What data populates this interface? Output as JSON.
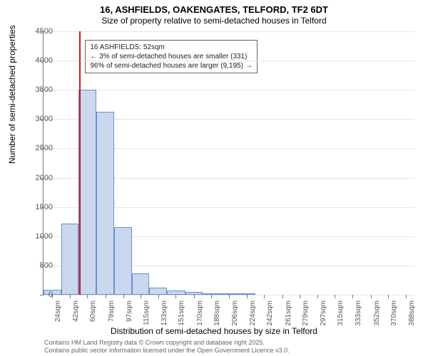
{
  "title": "16, ASHFIELDS, OAKENGATES, TELFORD, TF2 6DT",
  "subtitle": "Size of property relative to semi-detached houses in Telford",
  "ylabel": "Number of semi-detached properties",
  "xlabel": "Distribution of semi-detached houses by size in Telford",
  "attribution_line1": "Contains HM Land Registry data © Crown copyright and database right 2025.",
  "attribution_line2": "Contains public sector information licensed under the Open Government Licence v3.0.",
  "chart": {
    "type": "histogram",
    "ylim": [
      0,
      4500
    ],
    "yticks": [
      0,
      500,
      1000,
      1500,
      2000,
      2500,
      3000,
      3500,
      4000,
      4500
    ],
    "xlim": [
      15,
      397
    ],
    "xticks": [
      24,
      42,
      60,
      79,
      97,
      115,
      133,
      151,
      170,
      188,
      206,
      224,
      242,
      261,
      279,
      297,
      315,
      333,
      352,
      370,
      388
    ],
    "xtick_unit": "sqm",
    "bar_fill": "#c9d8ef",
    "bar_border": "#6a8fc8",
    "grid_color": "#e6e6e6",
    "background_color": "#ffffff",
    "bars": [
      {
        "x0": 15,
        "x1": 33,
        "y": 90
      },
      {
        "x0": 33,
        "x1": 51,
        "y": 1220
      },
      {
        "x0": 51,
        "x1": 69,
        "y": 3500
      },
      {
        "x0": 69,
        "x1": 88,
        "y": 3120
      },
      {
        "x0": 88,
        "x1": 106,
        "y": 1160
      },
      {
        "x0": 106,
        "x1": 124,
        "y": 370
      },
      {
        "x0": 124,
        "x1": 142,
        "y": 120
      },
      {
        "x0": 142,
        "x1": 161,
        "y": 70
      },
      {
        "x0": 161,
        "x1": 179,
        "y": 50
      },
      {
        "x0": 179,
        "x1": 197,
        "y": 25
      },
      {
        "x0": 197,
        "x1": 215,
        "y": 12
      },
      {
        "x0": 215,
        "x1": 233,
        "y": 6
      }
    ],
    "marker": {
      "x": 52,
      "color": "#d11919",
      "width": 2
    },
    "annotation": {
      "line1": "16 ASHFIELDS: 52sqm",
      "line2": "← 3% of semi-detached houses are smaller (331)",
      "line3": "96% of semi-detached houses are larger (9,195) →",
      "border_color": "#666666",
      "bg_color": "#ffffff",
      "fontsize": 10
    },
    "title_fontsize": 13,
    "subtitle_fontsize": 12,
    "label_fontsize": 12,
    "tick_fontsize": 11
  }
}
